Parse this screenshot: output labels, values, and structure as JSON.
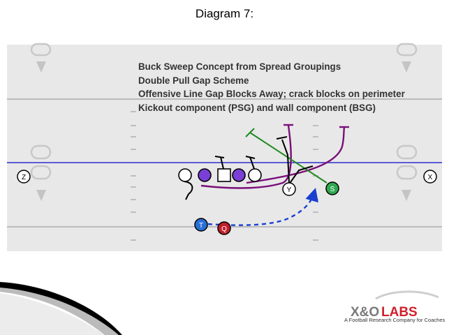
{
  "slide": {
    "title": "Diagram 7:"
  },
  "notes": [
    "Buck Sweep Concept from Spread Groupings",
    "Double Pull Gap Scheme",
    "Offensive Line Gap Blocks Away; crack blocks on perimeter",
    "Kickout component (PSG) and wall component (BSG)"
  ],
  "players": {
    "z": "Z",
    "x": "X",
    "y": "Y",
    "s": "S",
    "t": "T",
    "q": "Q"
  },
  "colors": {
    "field": "#e8e8e8",
    "los": "#5b5bd6",
    "pull_guard": "#7a0f7a",
    "green_block": "#1f8a1f",
    "motion": "#1a3fcf",
    "t_player": "#2a6fd6",
    "q_player": "#c0202a",
    "s_player": "#2fa84f",
    "brand_red": "#d0202a",
    "brand_gray": "#7a7a7a"
  },
  "brand": {
    "name_left": "X&O",
    "name_right": "LABS",
    "tagline": "A Football Research Company for Coaches"
  }
}
